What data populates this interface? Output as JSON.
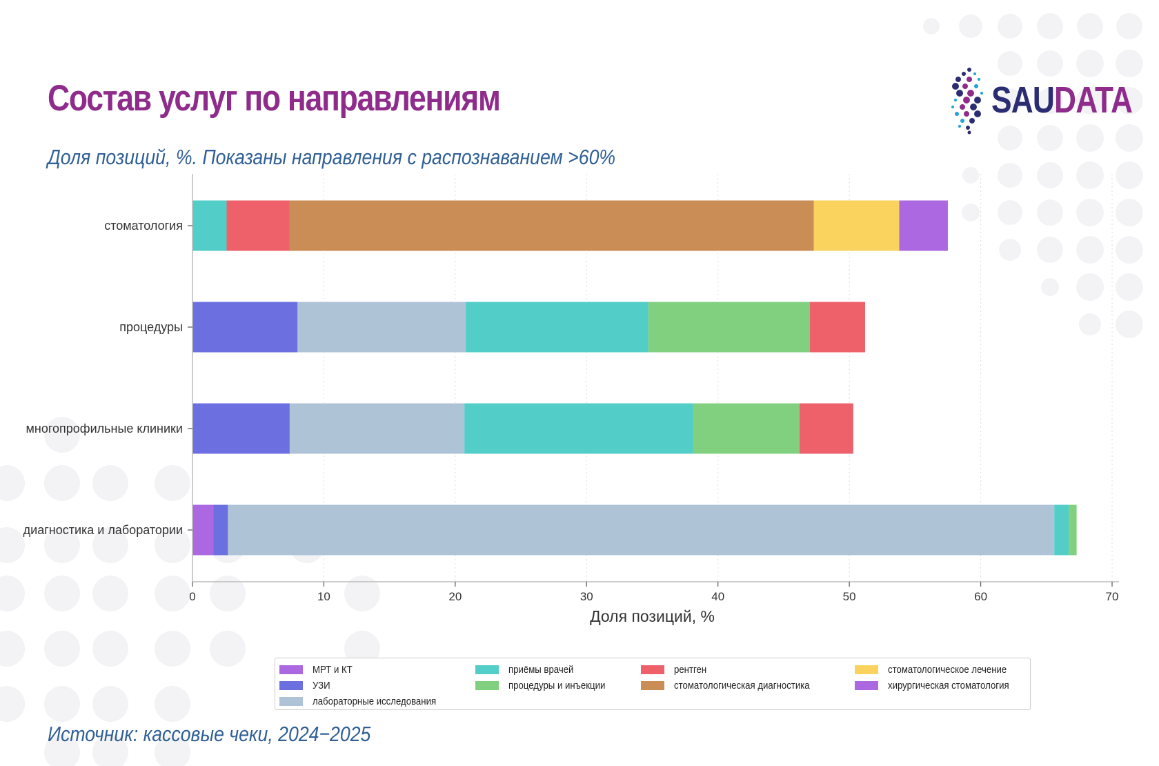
{
  "header": {
    "title": "Состав услуг по направлениям",
    "subtitle": "Доля позиций, %. Показаны направления с распознаванием >60%"
  },
  "footer": {
    "source": "Источник: кассовые чеки, 2024−2025"
  },
  "logo": {
    "part1": "SAU",
    "part2": "DATA"
  },
  "colors": {
    "title": "#8e2b8b",
    "subtitle": "#2f5f95",
    "logo_dark": "#2b2d73",
    "logo_accent": "#8e2b8b",
    "background_dots": "#f3f3f5"
  },
  "chart_data": {
    "type": "bar",
    "orientation": "horizontal",
    "stacked": true,
    "title": "",
    "xlabel": "Доля позиций, %",
    "ylabel": "",
    "xlim": [
      0,
      70
    ],
    "xticks": [
      0,
      10,
      20,
      30,
      40,
      50,
      60,
      70
    ],
    "grid": "vertical dotted",
    "legend_position": "bottom",
    "categories": [
      "стоматология",
      "процедуры",
      "многопрофильные клиники",
      "диагностика и лаборатории"
    ],
    "series": [
      {
        "name": "МРТ и КТ",
        "color": "#ab68e0",
        "values": [
          0,
          0,
          0,
          1.6
        ]
      },
      {
        "name": "УЗИ",
        "color": "#6c6fe0",
        "values": [
          0,
          8.0,
          7.4,
          1.1
        ]
      },
      {
        "name": "лабораторные исследования",
        "color": "#aec3d6",
        "values": [
          0,
          12.8,
          13.3,
          62.9
        ]
      },
      {
        "name": "приёмы врачей",
        "color": "#52cdc8",
        "values": [
          2.6,
          13.9,
          17.4,
          1.1
        ]
      },
      {
        "name": "процедуры и инъекции",
        "color": "#80d080",
        "values": [
          0,
          12.3,
          8.1,
          0.6
        ]
      },
      {
        "name": "рентген",
        "color": "#ee616b",
        "values": [
          4.8,
          4.2,
          4.1,
          0
        ]
      },
      {
        "name": "стоматологическая диагностика",
        "color": "#cb8d56",
        "values": [
          39.9,
          0,
          0,
          0
        ]
      },
      {
        "name": "стоматологическое лечение",
        "color": "#f9d35e",
        "values": [
          6.5,
          0,
          0,
          0
        ]
      },
      {
        "name": "хирургическая стоматология",
        "color": "#ab68e0",
        "values": [
          3.7,
          0,
          0,
          0
        ]
      }
    ],
    "legend_columns": [
      [
        "МРТ и КТ",
        "УЗИ",
        "лабораторные исследования"
      ],
      [
        "приёмы врачей",
        "процедуры и инъекции"
      ],
      [
        "рентген",
        "стоматологическая диагностика"
      ],
      [
        "стоматологическое лечение",
        "хирургическая стоматология"
      ]
    ]
  }
}
